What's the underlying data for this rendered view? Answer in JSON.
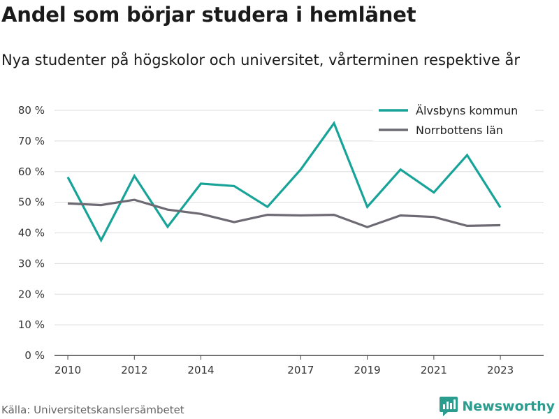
{
  "chart_data": {
    "type": "line",
    "title": "Andel som börjar studera i hemlänet",
    "subtitle": "Nya studenter på högskolor och universitet, vårterminen respektive år",
    "x": [
      2010,
      2011,
      2012,
      2013,
      2014,
      2015,
      2016,
      2017,
      2018,
      2019,
      2020,
      2021,
      2022,
      2023
    ],
    "x_tick_labels": [
      "2010",
      "2012",
      "2014",
      "2017",
      "2019",
      "2021",
      "2023"
    ],
    "y_tick_labels": [
      "0 %",
      "10 %",
      "20 %",
      "30 %",
      "40 %",
      "50 %",
      "60 %",
      "70 %",
      "80 %"
    ],
    "xlim": [
      2009.6,
      2024.3
    ],
    "ylim": [
      0,
      80
    ],
    "grid": true,
    "legend_position": "top-right",
    "series": [
      {
        "name": "Älvsbyns kommun",
        "color": "#17a398",
        "values": [
          58.2,
          37.6,
          58.6,
          42.0,
          56.1,
          55.3,
          48.5,
          60.7,
          75.8,
          48.5,
          60.7,
          53.2,
          65.4,
          48.3
        ]
      },
      {
        "name": "Norrbottens län",
        "color": "#6d6a73",
        "values": [
          49.6,
          49.1,
          50.8,
          47.6,
          46.2,
          43.5,
          45.9,
          45.7,
          45.9,
          41.9,
          45.7,
          45.2,
          42.3,
          42.5
        ]
      }
    ]
  },
  "footer": {
    "source": "Källa: Universitetskanslersämbetet",
    "brand": "Newsworthy"
  },
  "colors": {
    "brand": "#2a9d8f"
  }
}
